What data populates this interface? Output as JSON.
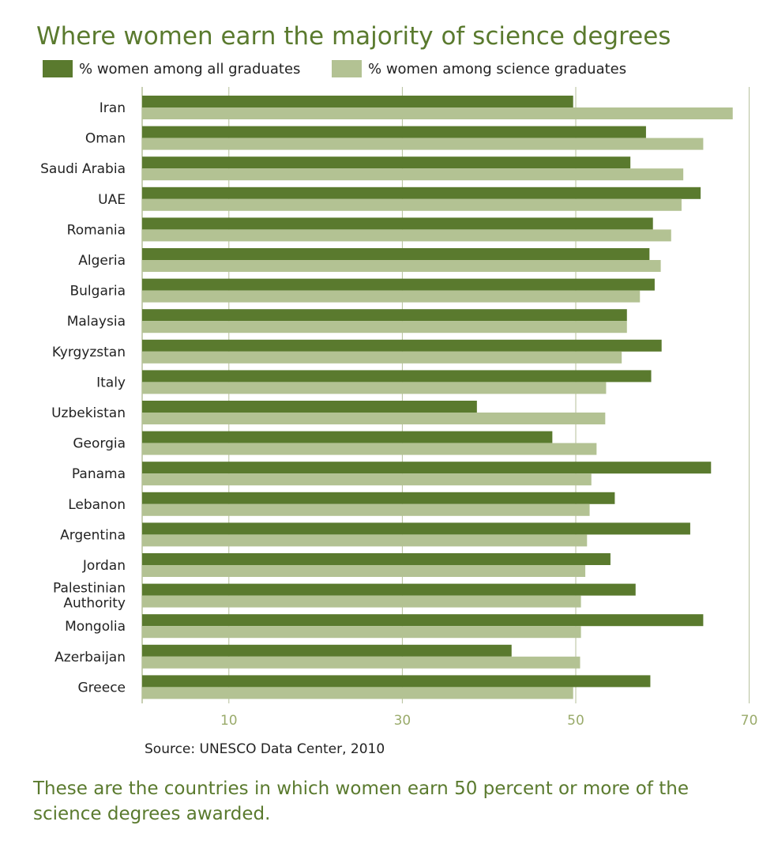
{
  "colors": {
    "title": "#5a7a2e",
    "dark_series": "#5a7a2e",
    "light_series": "#b3c293",
    "grid": "#b5bf9a",
    "tick_label": "#9aab6b"
  },
  "chart_data": {
    "type": "bar",
    "orientation": "horizontal",
    "title": "Where women earn the majority of science degrees",
    "categories": [
      "Iran",
      "Oman",
      "Saudi Arabia",
      "UAE",
      "Romania",
      "Algeria",
      "Bulgaria",
      "Malaysia",
      "Kyrgyzstan",
      "Italy",
      "Uzbekistan",
      "Georgia",
      "Panama",
      "Lebanon",
      "Argentina",
      "Jordan",
      "Palestinian Authority",
      "Mongolia",
      "Azerbaijan",
      "Greece"
    ],
    "category_lines": [
      [
        "Iran"
      ],
      [
        "Oman"
      ],
      [
        "Saudi Arabia"
      ],
      [
        "UAE"
      ],
      [
        "Romania"
      ],
      [
        "Algeria"
      ],
      [
        "Bulgaria"
      ],
      [
        "Malaysia"
      ],
      [
        "Kyrgyzstan"
      ],
      [
        "Italy"
      ],
      [
        "Uzbekistan"
      ],
      [
        "Georgia"
      ],
      [
        "Panama"
      ],
      [
        "Lebanon"
      ],
      [
        "Argentina"
      ],
      [
        "Jordan"
      ],
      [
        "Palestinian",
        "Authority"
      ],
      [
        "Mongolia"
      ],
      [
        "Azerbaijan"
      ],
      [
        "Greece"
      ]
    ],
    "series": [
      {
        "name": "% women among all graduates",
        "values": [
          49.7,
          58.1,
          56.3,
          64.4,
          58.9,
          58.5,
          59.1,
          55.9,
          59.9,
          58.7,
          38.6,
          47.3,
          65.6,
          54.5,
          63.2,
          54.0,
          56.9,
          64.7,
          42.6,
          58.6
        ]
      },
      {
        "name": "% women among science graduates",
        "values": [
          68.1,
          64.7,
          62.4,
          62.2,
          61.0,
          59.8,
          57.4,
          55.9,
          55.3,
          53.5,
          53.4,
          52.4,
          51.8,
          51.6,
          51.3,
          51.1,
          50.6,
          50.6,
          50.5,
          49.7
        ]
      }
    ],
    "x_ticks": [
      10,
      30,
      50,
      70
    ],
    "x_tick_labels": [
      "10",
      "30",
      "50",
      "70"
    ],
    "xlim": [
      0,
      70
    ],
    "legend_position": "top"
  },
  "source": "Source: UNESCO Data Center, 2010",
  "caption": "These are the countries in which women earn 50 percent or more of the science degrees awarded."
}
